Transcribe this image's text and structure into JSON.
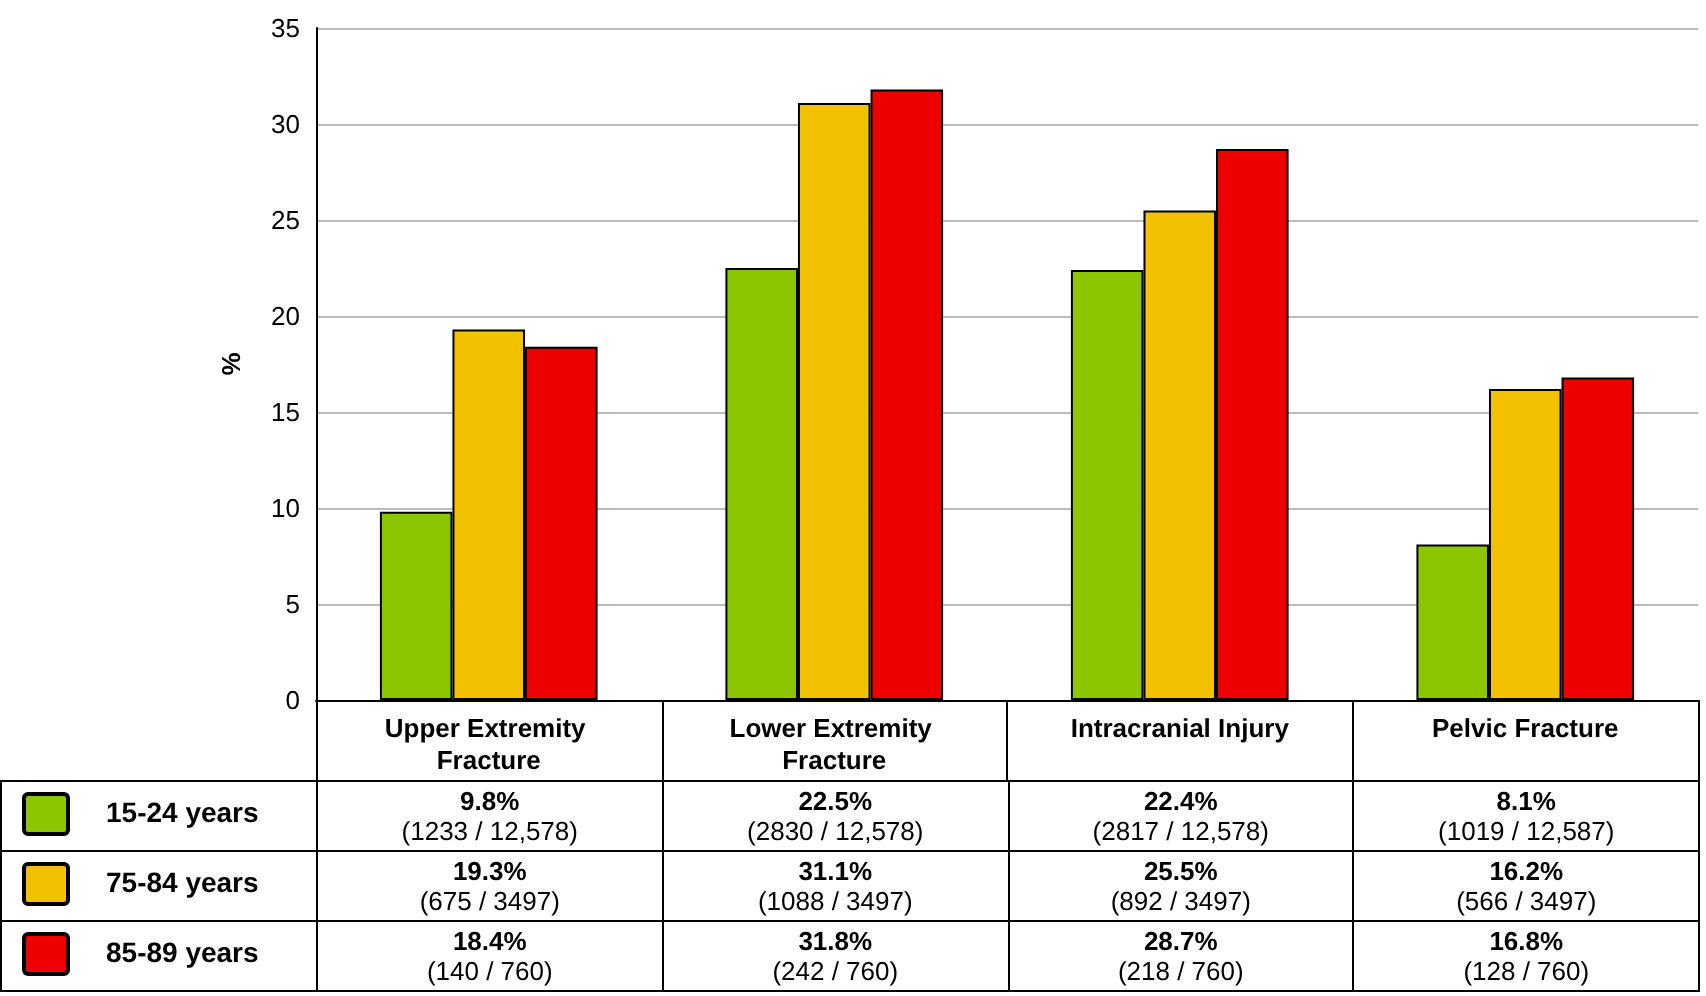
{
  "chart_data": {
    "type": "bar",
    "ylabel": "%",
    "categories": [
      "Upper Extremity Fracture",
      "Lower Extremity Fracture",
      "Intracranial Injury",
      "Pelvic Fracture"
    ],
    "series": [
      {
        "name": "15-24 years",
        "color": "#8cc600",
        "values": [
          9.8,
          22.5,
          22.4,
          8.1
        ],
        "value_labels": [
          "9.8%\n(1233 / 12,578)",
          "22.5%\n(2830 / 12,578)",
          "22.4%\n(2817 / 12,578)",
          "8.1%\n(1019 / 12,587)"
        ]
      },
      {
        "name": "75-84 years",
        "color": "#f2c200",
        "values": [
          19.3,
          31.1,
          25.5,
          16.2
        ],
        "value_labels": [
          "19.3%\n(675 / 3497)",
          "31.1%\n(1088 / 3497)",
          "25.5%\n(892 / 3497)",
          "16.2%\n(566 / 3497)"
        ]
      },
      {
        "name": "85-89 years",
        "color": "#ee0000",
        "values": [
          18.4,
          31.8,
          28.7,
          16.8
        ],
        "value_labels": [
          "18.4%\n(140 / 760)",
          "31.8%\n(242 / 760)",
          "28.7%\n(218 / 760)",
          "16.8%\n(128 / 760)"
        ]
      }
    ],
    "ylim": [
      0,
      35
    ],
    "yticks": [
      0,
      5,
      10,
      15,
      20,
      25,
      30,
      35
    ],
    "grid": "y",
    "legend": "bottom left"
  }
}
